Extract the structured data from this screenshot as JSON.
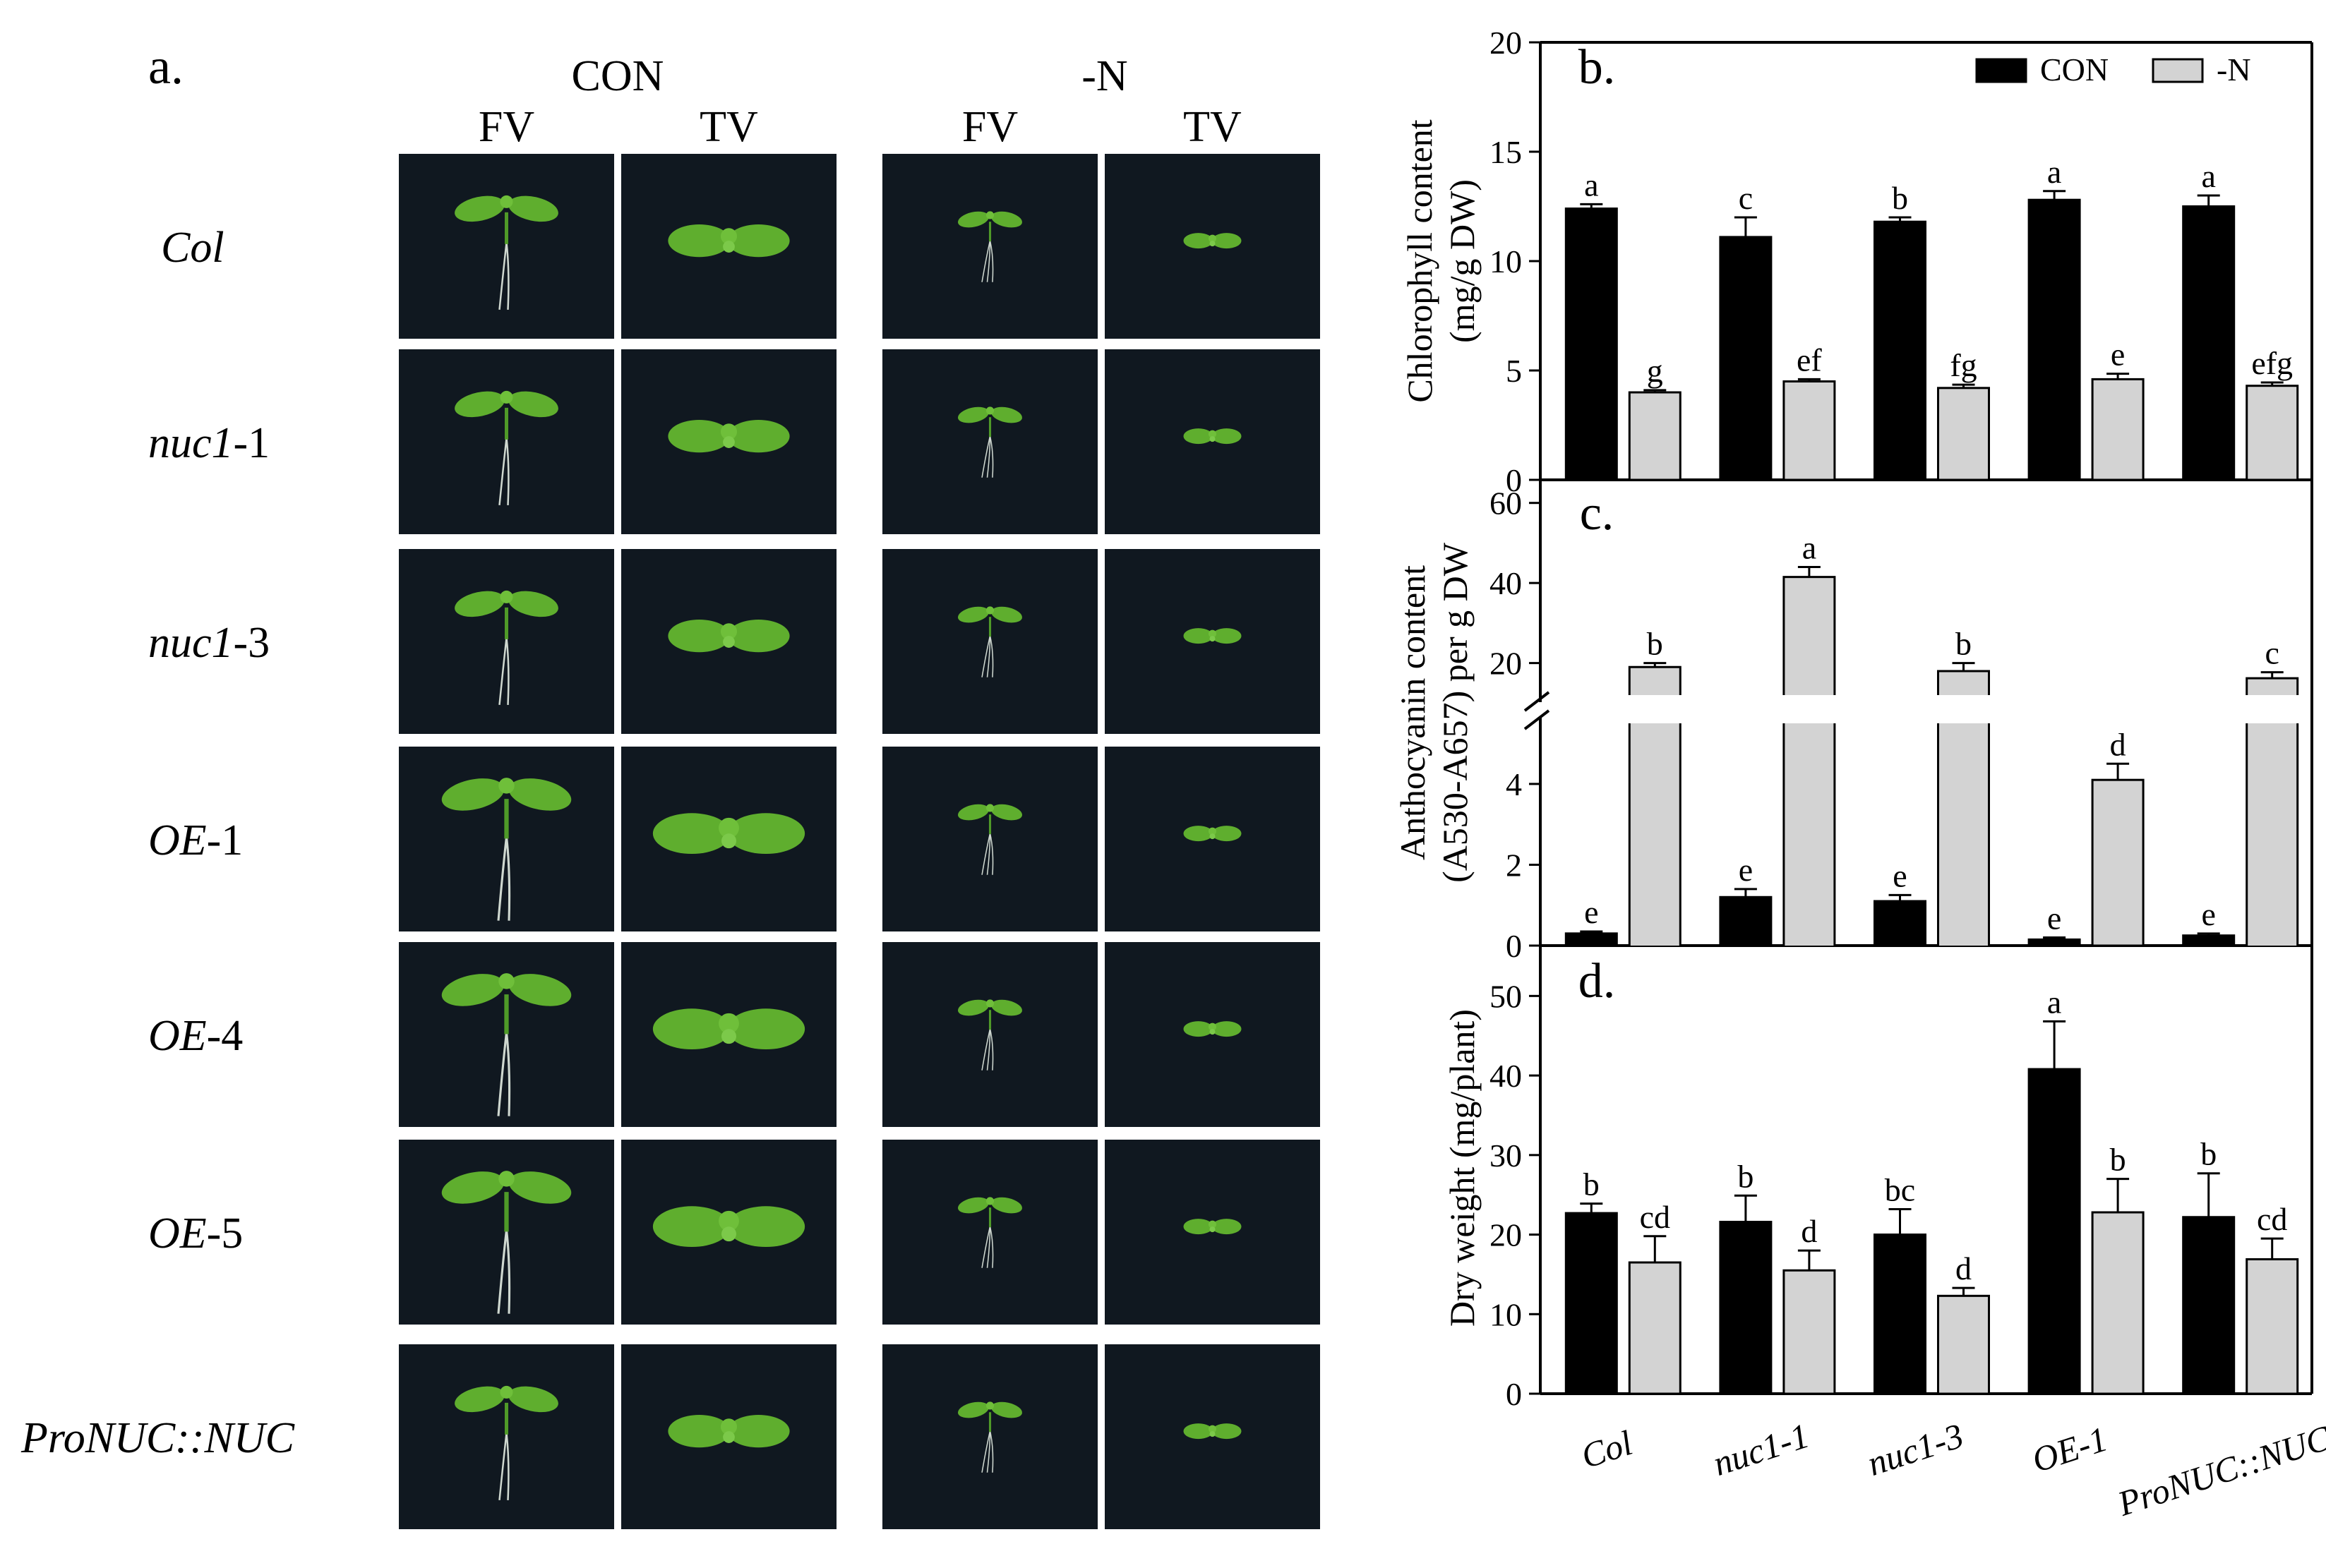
{
  "panel_a": {
    "label": "a.",
    "conditions": [
      "CON",
      "-N"
    ],
    "views": [
      "FV",
      "TV",
      "FV",
      "TV"
    ],
    "genotypes": [
      {
        "italic": "Col",
        "plain": ""
      },
      {
        "italic": "nuc1",
        "plain": "-1"
      },
      {
        "italic": "nuc1",
        "plain": "-3"
      },
      {
        "italic": "OE",
        "plain": "-1"
      },
      {
        "italic": "OE",
        "plain": "-4"
      },
      {
        "italic": "OE",
        "plain": "-5"
      },
      {
        "italic": "ProNUC::NUC",
        "plain": ""
      }
    ],
    "photo_background": "#101820",
    "leaf_color": "#5fae2e",
    "root_color": "#cfd8d0"
  },
  "chart_data": [
    {
      "type": "bar",
      "panel_label": "b.",
      "ylabel_lines": [
        "Chlorophyll content",
        "(mg/g DW)"
      ],
      "categories": [
        "Col",
        "nuc1-1",
        "nuc1-3",
        "OE-1",
        "ProNUC::NUC"
      ],
      "ylim": [
        0,
        20
      ],
      "yticks": [
        0,
        5,
        10,
        15,
        20
      ],
      "legend": {
        "position": "top-right"
      },
      "series": [
        {
          "name": "CON",
          "color": "#000000",
          "values": [
            12.4,
            11.1,
            11.8,
            12.8,
            12.5
          ],
          "errors": [
            0.2,
            0.9,
            0.2,
            0.4,
            0.5
          ],
          "letters": [
            "a",
            "c",
            "b",
            "a",
            "a"
          ]
        },
        {
          "name": "-N",
          "color": "#d3d3d3",
          "values": [
            4.0,
            4.5,
            4.2,
            4.6,
            4.3
          ],
          "errors": [
            0.1,
            0.1,
            0.15,
            0.25,
            0.15
          ],
          "letters": [
            "g",
            "ef",
            "fg",
            "e",
            "efg"
          ]
        }
      ]
    },
    {
      "type": "bar",
      "panel_label": "c.",
      "ylabel_lines": [
        "Anthocyanin content",
        "(A530-A657) per g DW"
      ],
      "categories": [
        "Col",
        "nuc1-1",
        "nuc1-3",
        "OE-1",
        "ProNUC::NUC"
      ],
      "axis_break": true,
      "lower_range": [
        0,
        5.5
      ],
      "lower_ticks": [
        0,
        2,
        4
      ],
      "upper_range": [
        12,
        64
      ],
      "upper_ticks": [
        20,
        40,
        60
      ],
      "series": [
        {
          "name": "CON",
          "color": "#000000",
          "values": [
            0.3,
            1.2,
            1.1,
            0.15,
            0.25
          ],
          "errors": [
            0.05,
            0.2,
            0.15,
            0.05,
            0.05
          ],
          "letters": [
            "e",
            "e",
            "e",
            "e",
            "e"
          ]
        },
        {
          "name": "-N",
          "color": "#d3d3d3",
          "values": [
            19.0,
            41.5,
            18.0,
            4.1,
            16.2
          ],
          "errors": [
            1.0,
            2.5,
            2.0,
            0.4,
            1.5
          ],
          "letters": [
            "b",
            "a",
            "b",
            "d",
            "c"
          ]
        }
      ]
    },
    {
      "type": "bar",
      "panel_label": "d.",
      "ylabel_lines": [
        "Dry weight (mg/plant)"
      ],
      "categories": [
        "Col",
        "nuc1-1",
        "nuc1-3",
        "OE-1",
        "ProNUC::NUC"
      ],
      "ylim": [
        0,
        55
      ],
      "yticks": [
        0,
        10,
        20,
        30,
        40,
        50
      ],
      "series": [
        {
          "name": "CON",
          "color": "#000000",
          "values": [
            22.7,
            21.6,
            20.0,
            40.8,
            22.2
          ],
          "errors": [
            1.2,
            3.3,
            3.2,
            6.0,
            5.5
          ],
          "letters": [
            "b",
            "b",
            "bc",
            "a",
            "b"
          ]
        },
        {
          "name": "-N",
          "color": "#d3d3d3",
          "values": [
            16.5,
            15.5,
            12.3,
            22.8,
            16.9
          ],
          "errors": [
            3.3,
            2.5,
            1.0,
            4.2,
            2.6
          ],
          "letters": [
            "cd",
            "d",
            "d",
            "b",
            "cd"
          ]
        }
      ]
    }
  ]
}
